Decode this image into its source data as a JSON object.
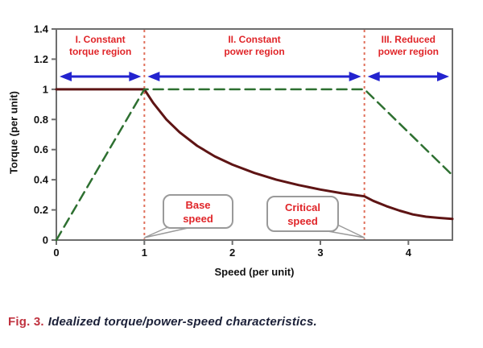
{
  "caption": {
    "label": "Fig. 3.",
    "text": "Idealized torque/power-speed characteristics."
  },
  "chart_data": {
    "type": "line",
    "title": "",
    "xlabel": "Speed (per unit)",
    "ylabel": "Torque (per unit)",
    "xlim": [
      0,
      4.5
    ],
    "ylim": [
      0,
      1.4
    ],
    "x_ticks": [
      "0",
      "1",
      "2",
      "3",
      "4"
    ],
    "y_ticks": [
      "0",
      "0.2",
      "0.4",
      "0.6",
      "0.8",
      "1",
      "1.2",
      "1.4"
    ],
    "grid": false,
    "legend": "none",
    "series": [
      {
        "name": "torque",
        "color": "#5e1414",
        "line_style": "solid",
        "line_width": 3,
        "points": [
          [
            0,
            1
          ],
          [
            1,
            1
          ],
          [
            1.1,
            0.91
          ],
          [
            1.25,
            0.8
          ],
          [
            1.4,
            0.715
          ],
          [
            1.6,
            0.625
          ],
          [
            1.8,
            0.555
          ],
          [
            2,
            0.5
          ],
          [
            2.25,
            0.445
          ],
          [
            2.5,
            0.4
          ],
          [
            2.75,
            0.365
          ],
          [
            3,
            0.335
          ],
          [
            3.25,
            0.31
          ],
          [
            3.5,
            0.29
          ],
          [
            3.6,
            0.26
          ],
          [
            3.75,
            0.225
          ],
          [
            3.9,
            0.195
          ],
          [
            4.05,
            0.17
          ],
          [
            4.2,
            0.155
          ],
          [
            4.35,
            0.147
          ],
          [
            4.5,
            0.14
          ]
        ]
      },
      {
        "name": "power",
        "color": "#2e7031",
        "line_style": "dashed",
        "line_width": 2.5,
        "points": [
          [
            0,
            0
          ],
          [
            1,
            1
          ],
          [
            3.5,
            1
          ],
          [
            4.5,
            0.43
          ]
        ]
      }
    ],
    "vlines": [
      {
        "x": 1,
        "label": "base speed boundary"
      },
      {
        "x": 3.5,
        "label": "critical speed boundary"
      }
    ],
    "regions": [
      {
        "line1": "I. Constant",
        "line2": "torque region",
        "x_start": 0,
        "x_end": 1
      },
      {
        "line1": "II. Constant",
        "line2": "power region",
        "x_start": 1,
        "x_end": 3.5
      },
      {
        "line1": "III. Reduced",
        "line2": "power region",
        "x_start": 3.5,
        "x_end": 4.5
      }
    ],
    "callouts": [
      {
        "line1": "Base",
        "line2": "speed",
        "target_x": 1
      },
      {
        "line1": "Critical",
        "line2": "speed",
        "target_x": 3.5
      }
    ],
    "colors": {
      "arrow_blue": "#2323cf",
      "region_text_red": "#e02529",
      "callout_text_red": "#e02529",
      "vline_salmon": "#e0705c",
      "frame_gray": "#6e6e6e",
      "tick_text": "#111111",
      "caption_label_red": "#c0323f",
      "caption_text": "#1b2038"
    }
  }
}
